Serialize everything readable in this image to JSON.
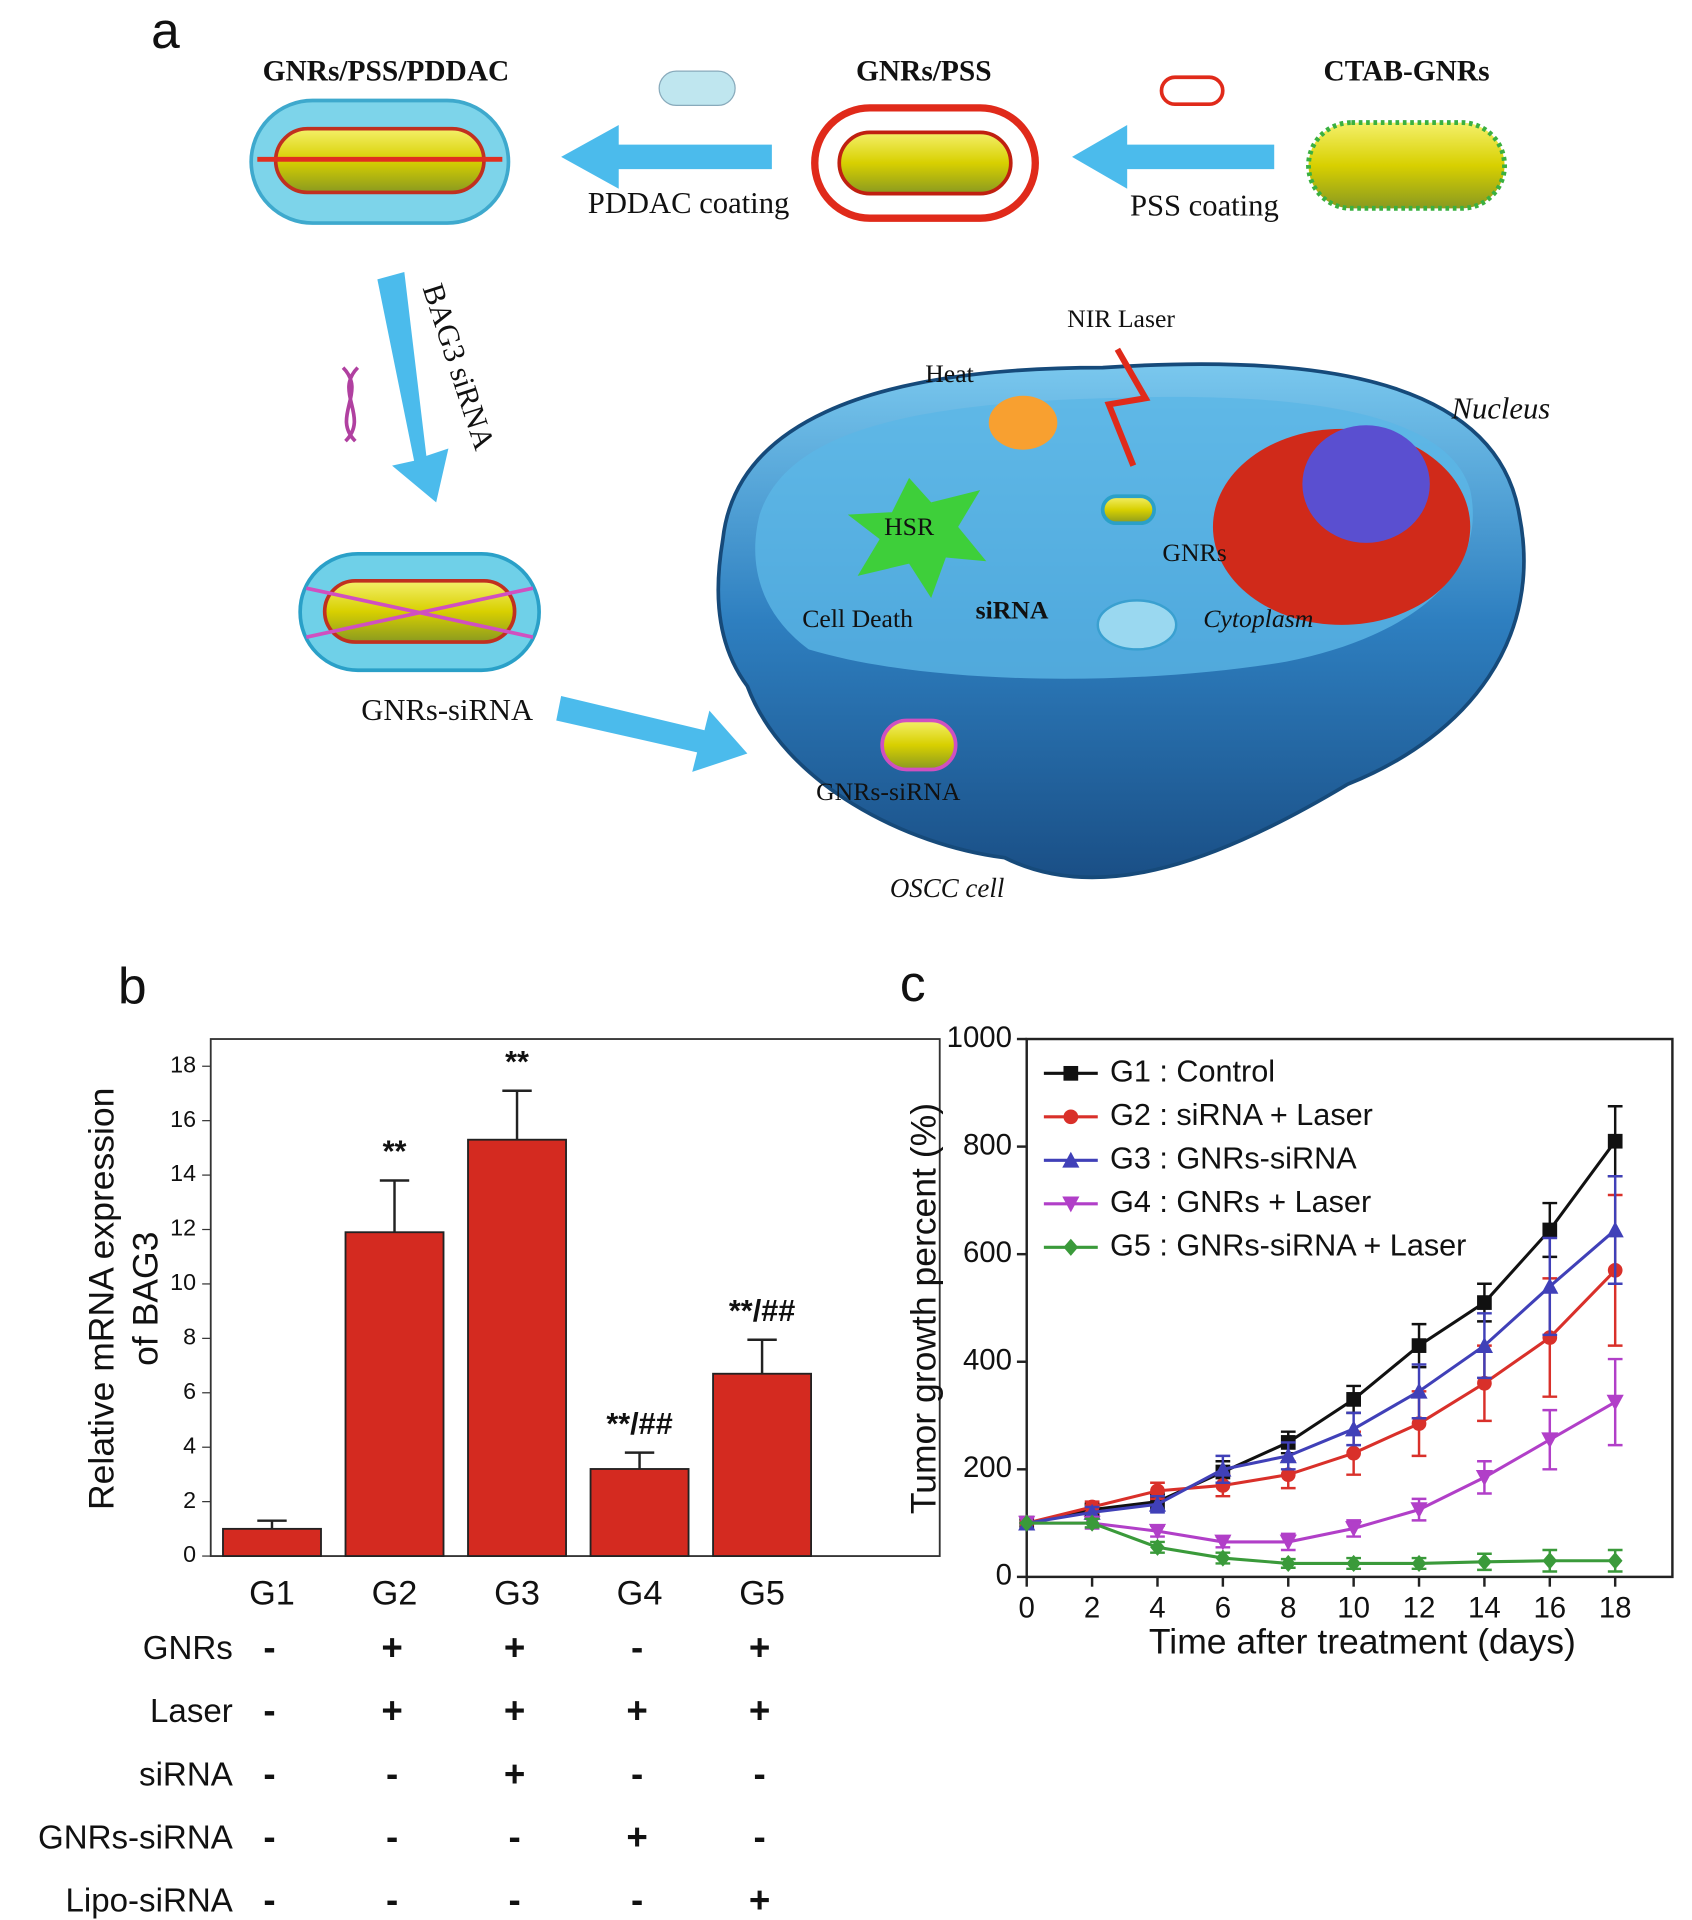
{
  "panel_labels": [
    "a",
    "b",
    "c"
  ],
  "diagram": {
    "rods": [
      "GNRs/PSS/PDDAC",
      "GNRs/PSS",
      "CTAB-GNRs"
    ],
    "steps": [
      "PDDAC coating",
      "PSS coating",
      "BAG3 siRNA"
    ],
    "product": "GNRs-siRNA",
    "cell": {
      "laser": "NIR Laser",
      "heat": "Heat",
      "nucleus": "Nucleus",
      "hsr": "HSR",
      "gnrs": "GNRs",
      "sirna": "siRNA",
      "death": "Cell Death",
      "cytoplasm": "Cytoplasm",
      "entering": "GNRs-siRNA",
      "name": "OSCC cell"
    }
  },
  "chart_data": [
    {
      "type": "bar",
      "ylabel": [
        "Relative mRNA expression",
        "of BAG3"
      ],
      "categories": [
        "G1",
        "G2",
        "G3",
        "G4",
        "G5"
      ],
      "values": [
        1.0,
        11.9,
        15.3,
        3.2,
        6.7
      ],
      "errors": [
        0.3,
        1.9,
        1.8,
        0.6,
        1.25
      ],
      "color": "#d42a20",
      "ylim": [
        0,
        19
      ],
      "yticks": [
        0,
        2,
        4,
        6,
        8,
        10,
        12,
        14,
        16,
        18
      ],
      "annotations": [
        {
          "category": "G2",
          "text": "**"
        },
        {
          "category": "G3",
          "text": "**"
        },
        {
          "category": "G4",
          "text": "**/##"
        },
        {
          "category": "G5",
          "text": "**/##"
        }
      ],
      "conditions": [
        {
          "name": "GNRs",
          "values": [
            "-",
            "+",
            "+",
            "-",
            "+"
          ]
        },
        {
          "name": "Laser",
          "values": [
            "-",
            "+",
            "+",
            "+",
            "+"
          ]
        },
        {
          "name": "siRNA",
          "values": [
            "-",
            "-",
            "+",
            "-",
            "-"
          ]
        },
        {
          "name": "GNRs-siRNA",
          "values": [
            "-",
            "-",
            "-",
            "+",
            "-"
          ]
        },
        {
          "name": "Lipo-siRNA",
          "values": [
            "-",
            "-",
            "-",
            "-",
            "+"
          ]
        }
      ]
    },
    {
      "type": "line",
      "xlabel": "Time after treatment (days)",
      "ylabel": "Tumor growth percent (%)",
      "x": [
        0,
        2,
        4,
        6,
        8,
        10,
        12,
        14,
        16,
        18
      ],
      "xlim": [
        0,
        19.75
      ],
      "xticks": [
        0,
        2,
        4,
        6,
        8,
        10,
        12,
        14,
        16,
        18
      ],
      "ylim": [
        0,
        1000
      ],
      "yticks": [
        0,
        200,
        400,
        600,
        800,
        1000
      ],
      "legend": "upper left",
      "series": [
        {
          "name": "G1 : Control",
          "color": "#111111",
          "marker": "square",
          "values": [
            100,
            125,
            140,
            195,
            250,
            330,
            430,
            510,
            645,
            810
          ],
          "errors": [
            0,
            10,
            15,
            20,
            20,
            25,
            40,
            35,
            50,
            65
          ]
        },
        {
          "name": "G2 : siRNA + Laser",
          "color": "#d9302a",
          "marker": "circle",
          "values": [
            100,
            130,
            160,
            170,
            190,
            230,
            285,
            360,
            445,
            570
          ],
          "errors": [
            0,
            10,
            15,
            20,
            25,
            40,
            60,
            70,
            110,
            140
          ]
        },
        {
          "name": "G3 : GNRs-siRNA",
          "color": "#4040b8",
          "marker": "triangle-up",
          "values": [
            100,
            120,
            135,
            200,
            225,
            275,
            345,
            430,
            540,
            645
          ],
          "errors": [
            0,
            10,
            15,
            25,
            25,
            30,
            50,
            60,
            90,
            100
          ]
        },
        {
          "name": "G4 : GNRs + Laser",
          "color": "#b13fc8",
          "marker": "triangle-down",
          "values": [
            100,
            100,
            85,
            65,
            65,
            90,
            125,
            185,
            255,
            325
          ],
          "errors": [
            0,
            10,
            10,
            10,
            15,
            15,
            20,
            30,
            55,
            80
          ]
        },
        {
          "name": "G5 : GNRs-siRNA + Laser",
          "color": "#3a9a3a",
          "marker": "diamond",
          "values": [
            100,
            100,
            55,
            35,
            25,
            25,
            25,
            28,
            30,
            30
          ],
          "errors": [
            0,
            8,
            10,
            10,
            8,
            10,
            10,
            15,
            20,
            20
          ]
        }
      ]
    }
  ]
}
